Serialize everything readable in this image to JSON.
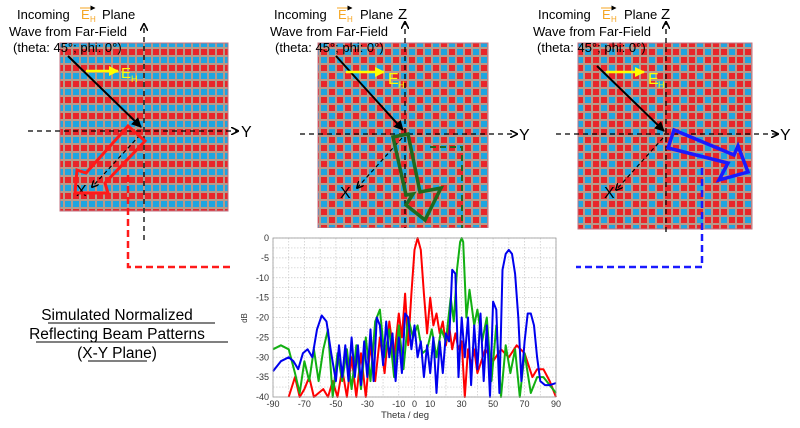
{
  "panels": [
    {
      "id": "left",
      "caption_prefix": "Incoming",
      "field_symbol": "E",
      "field_subscript": "H",
      "caption_suffix": "Plane",
      "caption_line2": "Wave from Far-Field",
      "caption_line3": "(theta: 45°; phi: 0°)",
      "axis_y_label": "Y",
      "axis_x_label": "X",
      "axis_z_label": "",
      "pattern": "stripes",
      "beam_color": "#ff1a1a",
      "beam_direction": "toward-X"
    },
    {
      "id": "center",
      "caption_prefix": "Incoming",
      "field_symbol": "E",
      "field_subscript": "H",
      "caption_suffix": "Plane",
      "caption_line2": "Wave from Far-Field",
      "caption_line3": "(theta: 45°; phi: 0°)",
      "axis_y_label": "Y",
      "axis_x_label": "X",
      "axis_z_label": "Z",
      "pattern": "checker",
      "beam_color": "#1f7a1f",
      "beam_direction": "down"
    },
    {
      "id": "right",
      "caption_prefix": "Incoming",
      "field_symbol": "E",
      "field_subscript": "H",
      "caption_suffix": "Plane",
      "caption_line2": "Wave from Far-Field",
      "caption_line3": "(theta: 45°; phi: 0°)",
      "axis_y_label": "Y",
      "axis_x_label": "X",
      "axis_z_label": "Z",
      "pattern": "checker2",
      "beam_color": "#1a1aff",
      "beam_direction": "toward-Y"
    }
  ],
  "colors": {
    "cell_red": "#e8262a",
    "cell_blue": "#1fa5e0",
    "grid_bg": "#b79a8a",
    "field_label": "#f5a623",
    "field_arrow": "#ffff00",
    "red_series": "#ff0000",
    "green_series": "#12b012",
    "blue_series": "#0000ee"
  },
  "caption": {
    "line1": "Simulated Normalized",
    "line2": "Reflecting Beam Patterns",
    "line3": "(X-Y Plane)"
  },
  "chart_data": {
    "type": "line",
    "title": "",
    "xlabel": "Theta / deg",
    "ylabel": "dB",
    "xlim": [
      -90,
      90
    ],
    "ylim": [
      -40,
      0
    ],
    "xticks": [
      -90,
      -70,
      -50,
      -30,
      -10,
      0,
      10,
      30,
      50,
      70,
      90
    ],
    "yticks": [
      0,
      -5,
      -10,
      -15,
      -20,
      -25,
      -30,
      -35,
      -40
    ],
    "grid": true,
    "series": [
      {
        "name": "red",
        "color": "#ff0000",
        "main_lobe_deg": 0,
        "x": [
          -80,
          -76,
          -73,
          -70,
          -67,
          -64,
          -61,
          -58,
          -55,
          -52,
          -49,
          -46,
          -43,
          -40,
          -37,
          -34,
          -31,
          -28,
          -25,
          -22,
          -19,
          -16,
          -13,
          -10,
          -8,
          -6,
          -4,
          -2,
          0,
          2,
          4,
          6,
          8,
          10,
          12,
          14,
          16,
          18,
          20,
          22,
          24,
          26,
          28,
          30,
          32,
          34,
          36,
          38,
          40,
          45,
          50,
          55,
          60,
          65,
          70,
          75,
          78,
          82,
          86,
          90
        ],
        "y": [
          -40,
          -35,
          -40,
          -38,
          -35,
          -40,
          -39,
          -38,
          -40,
          -36,
          -40,
          -33,
          -40,
          -30,
          -40,
          -29,
          -40,
          -27,
          -36,
          -25,
          -34,
          -21,
          -30,
          -19,
          -25,
          -14,
          -27,
          -14,
          -3,
          0,
          -3,
          -14,
          -24,
          -15,
          -22,
          -19,
          -24,
          -21,
          -27,
          -22,
          -28,
          -24,
          -28,
          -26,
          -40,
          -28,
          -32,
          -28,
          -34,
          -28,
          -31,
          -28,
          -30,
          -27,
          -29,
          -35,
          -33,
          -33,
          -36,
          -40
        ]
      },
      {
        "name": "green",
        "color": "#12b012",
        "main_lobe_deg": 30,
        "x": [
          -90,
          -85,
          -80,
          -76,
          -73,
          -70,
          -67,
          -64,
          -61,
          -58,
          -55,
          -52,
          -49,
          -46,
          -43,
          -40,
          -37,
          -34,
          -31,
          -28,
          -25,
          -22,
          -19,
          -16,
          -13,
          -10,
          -7,
          -4,
          -1,
          2,
          5,
          8,
          11,
          14,
          17,
          20,
          23,
          25,
          27,
          29,
          30,
          31,
          33,
          35,
          36,
          38,
          40,
          43,
          46,
          49,
          52,
          55,
          58,
          61,
          64,
          67,
          70,
          74,
          78,
          82,
          86,
          90
        ],
        "y": [
          -28,
          -27,
          -28,
          -34,
          -39,
          -31,
          -36,
          -28,
          -36,
          -28,
          -23,
          -40,
          -29,
          -36,
          -28,
          -38,
          -27,
          -38,
          -25,
          -36,
          -21,
          -18,
          -30,
          -23,
          -35,
          -22,
          -33,
          -20,
          -25,
          -22,
          -29,
          -28,
          -23,
          -30,
          -23,
          -26,
          -15,
          -21,
          -8,
          -1,
          0,
          -1,
          -20,
          -13,
          -16,
          -22,
          -18,
          -26,
          -20,
          -36,
          -22,
          -40,
          -27,
          -34,
          -28,
          -40,
          -29,
          -39,
          -35,
          -35,
          -37,
          -39
        ]
      },
      {
        "name": "blue",
        "color": "#0000ee",
        "main_lobe_deg": 60,
        "x": [
          -90,
          -85,
          -80,
          -77,
          -74,
          -71,
          -68,
          -65,
          -62,
          -59,
          -56,
          -53,
          -50,
          -48,
          -46,
          -44,
          -42,
          -40,
          -38,
          -36,
          -34,
          -32,
          -30,
          -28,
          -26,
          -24,
          -22,
          -20,
          -18,
          -16,
          -14,
          -12,
          -10,
          -8,
          -6,
          -4,
          -2,
          0,
          2,
          4,
          6,
          8,
          10,
          12,
          14,
          16,
          18,
          20,
          22,
          24,
          26,
          28,
          30,
          32,
          34,
          36,
          38,
          40,
          42,
          44,
          46,
          48,
          50,
          52,
          54,
          56,
          58,
          60,
          62,
          64,
          66,
          68,
          70,
          72,
          74,
          76,
          78,
          80,
          83,
          86,
          90
        ],
        "y": [
          -33.5,
          -31,
          -30,
          -31,
          -33,
          -29,
          -28,
          -30,
          -23,
          -19.5,
          -21,
          -29,
          -36,
          -27,
          -35,
          -27,
          -36,
          -25,
          -35,
          -27,
          -37,
          -26,
          -35,
          -23,
          -36,
          -20,
          -22,
          -32,
          -21,
          -30,
          -24,
          -36,
          -25,
          -34,
          -19,
          -20,
          -28,
          -22,
          -30,
          -26,
          -35,
          -27,
          -34,
          -25,
          -39,
          -26,
          -34,
          -24,
          -26,
          -8,
          -9,
          -35,
          -20,
          -30,
          -20,
          -37,
          -22,
          -33,
          -19,
          -36,
          -22,
          -40,
          -16,
          -18,
          -39,
          -8,
          -4,
          -3,
          -4,
          -9,
          -20,
          -36,
          -26,
          -19,
          -19,
          -22,
          -30,
          -36,
          -37,
          -37,
          -36.5
        ]
      }
    ]
  }
}
